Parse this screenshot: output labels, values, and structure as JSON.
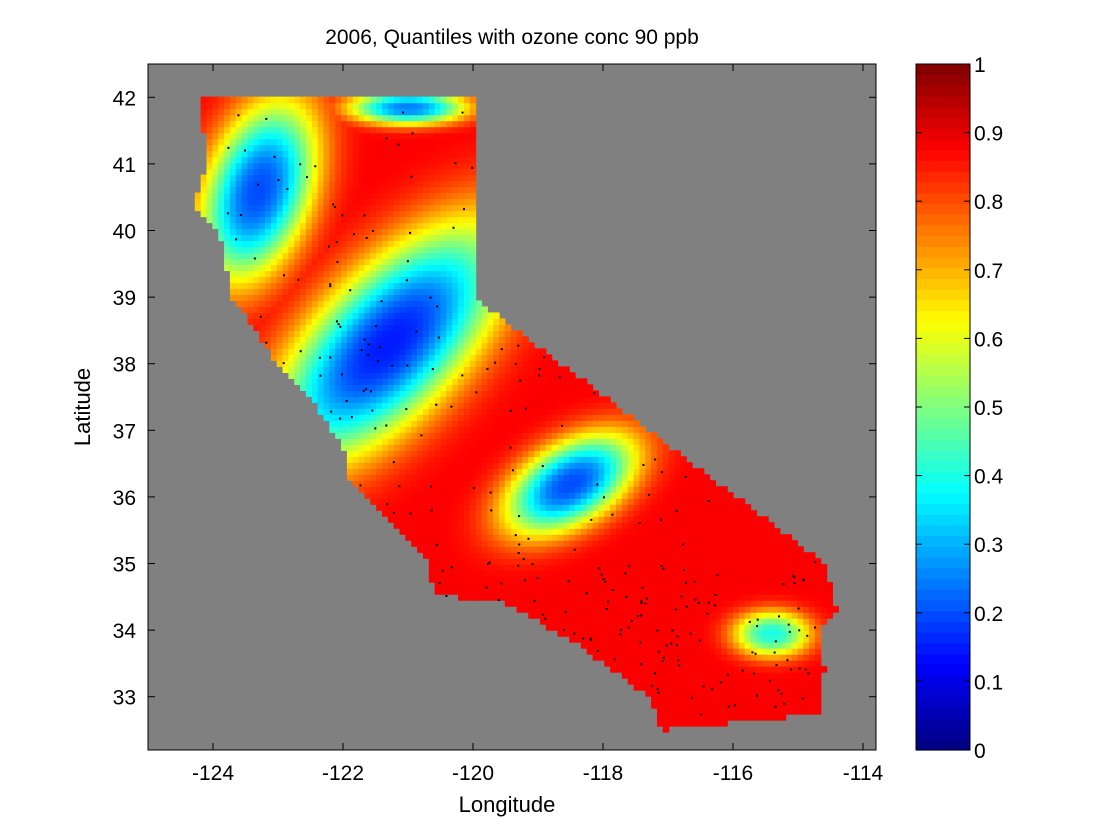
{
  "chart_data": {
    "type": "heatmap",
    "title": "2006, Quantiles with ozone conc 90 ppb",
    "xlabel": "Longitude",
    "ylabel": "Latitude",
    "xlim": [
      -125,
      -113.8
    ],
    "ylim": [
      32.2,
      42.5
    ],
    "xticks": [
      -124,
      -122,
      -120,
      -118,
      -116,
      -114
    ],
    "xtick_labels": [
      "-124",
      "-122",
      "-120",
      "-118",
      "-116",
      "-114"
    ],
    "yticks": [
      33,
      34,
      35,
      36,
      37,
      38,
      39,
      40,
      41,
      42
    ],
    "ytick_labels": [
      "33",
      "34",
      "35",
      "36",
      "37",
      "38",
      "39",
      "40",
      "41",
      "42"
    ],
    "background_color": "#808080",
    "colormap": "jet",
    "colorbar": {
      "range": [
        0,
        1
      ],
      "ticks": [
        0,
        0.1,
        0.2,
        0.3,
        0.4,
        0.5,
        0.6,
        0.7,
        0.8,
        0.9,
        1
      ],
      "tick_labels": [
        "0",
        "0.1",
        "0.2",
        "0.3",
        "0.4",
        "0.5",
        "0.6",
        "0.7",
        "0.8",
        "0.9",
        "1"
      ],
      "location": "right"
    },
    "region_outline": [
      [
        -124.2,
        42.0
      ],
      [
        -120.0,
        42.0
      ],
      [
        -120.0,
        39.0
      ],
      [
        -114.6,
        35.0
      ],
      [
        -114.4,
        34.25
      ],
      [
        -114.7,
        34.0
      ],
      [
        -114.6,
        33.4
      ],
      [
        -114.7,
        32.75
      ],
      [
        -117.1,
        32.5
      ],
      [
        -117.3,
        33.0
      ],
      [
        -118.4,
        33.8
      ],
      [
        -119.5,
        34.4
      ],
      [
        -120.6,
        34.55
      ],
      [
        -120.7,
        35.1
      ],
      [
        -121.9,
        36.3
      ],
      [
        -121.9,
        36.6
      ],
      [
        -122.5,
        37.5
      ],
      [
        -123.0,
        38.0
      ],
      [
        -123.7,
        39.0
      ],
      [
        -123.9,
        40.0
      ],
      [
        -124.3,
        40.4
      ],
      [
        -124.1,
        41.0
      ],
      [
        -124.2,
        42.0
      ]
    ],
    "field_features": [
      {
        "kind": "low",
        "center": [
          -121.3,
          38.3
        ],
        "major": 2.3,
        "minor": 1.05,
        "angle": 45,
        "value": 0.15
      },
      {
        "kind": "low",
        "center": [
          -118.5,
          36.2
        ],
        "major": 1.1,
        "minor": 0.6,
        "angle": 30,
        "value": 0.2
      },
      {
        "kind": "low",
        "center": [
          -123.3,
          40.6
        ],
        "major": 1.4,
        "minor": 0.8,
        "angle": 70,
        "value": 0.2
      },
      {
        "kind": "low",
        "center": [
          -121.0,
          41.85
        ],
        "major": 0.9,
        "minor": 0.25,
        "angle": 0,
        "value": 0.25
      },
      {
        "kind": "low",
        "center": [
          -115.4,
          33.95
        ],
        "major": 0.6,
        "minor": 0.35,
        "angle": 0,
        "value": 0.4
      }
    ]
  }
}
